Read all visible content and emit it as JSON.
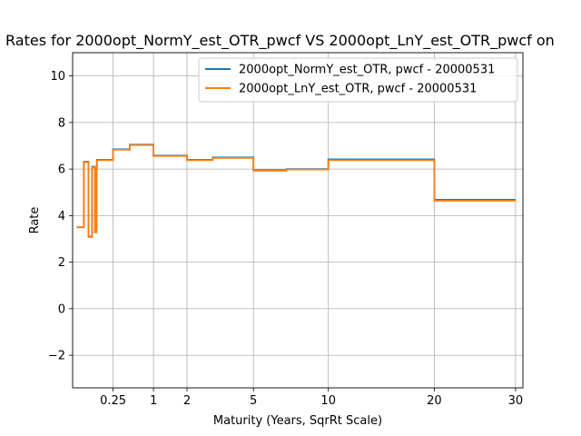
{
  "chart_data": {
    "type": "line",
    "title": "Rates for 2000opt_NormY_est_OTR_pwcf VS 2000opt_LnY_est_OTR_pwcf on",
    "xlabel": "Maturity (Years, SqrRt Scale)",
    "ylabel": "Rate",
    "x_scale": "sqrt",
    "xlim": [
      0,
      31
    ],
    "ylim": [
      -3.4,
      11
    ],
    "x_ticks": [
      0.25,
      1,
      2,
      5,
      10,
      20,
      30
    ],
    "x_tick_labels": [
      "0.25",
      "1",
      "2",
      "5",
      "10",
      "20",
      "30"
    ],
    "y_ticks": [
      -2,
      0,
      2,
      4,
      6,
      8,
      10
    ],
    "y_tick_labels": [
      "−2",
      "0",
      "2",
      "4",
      "6",
      "8",
      "10"
    ],
    "grid": true,
    "legend_position": "top-right",
    "series": [
      {
        "name": "2000opt_NormY_est_OTR, pwcf - 20000531",
        "color": "#1f77b4",
        "x": [
          0.0027,
          0.0192,
          0.0192,
          0.0383,
          0.0383,
          0.0575,
          0.0575,
          0.0767,
          0.0767,
          0.0877,
          0.0877,
          0.0904,
          0.0904,
          0.1,
          0.1,
          0.25,
          0.25,
          0.5,
          0.5,
          1,
          1,
          2,
          2,
          3,
          3,
          5,
          5,
          7,
          7,
          10,
          10,
          20,
          20,
          30
        ],
        "y": [
          3.5,
          3.5,
          6.32,
          6.32,
          3.1,
          3.1,
          6.1,
          6.1,
          3.3,
          3.3,
          6.0,
          6.0,
          6.4,
          6.4,
          6.4,
          6.4,
          6.85,
          6.85,
          7.05,
          7.05,
          6.58,
          6.58,
          6.4,
          6.4,
          6.5,
          6.5,
          5.95,
          5.95,
          6.0,
          6.0,
          6.42,
          6.42,
          4.68,
          4.68
        ]
      },
      {
        "name": "2000opt_LnY_est_OTR, pwcf - 20000531",
        "color": "#ff7f0e",
        "x": [
          0.0027,
          0.0192,
          0.0192,
          0.0383,
          0.0383,
          0.0575,
          0.0575,
          0.0767,
          0.0767,
          0.0877,
          0.0877,
          0.0904,
          0.0904,
          0.1,
          0.1,
          0.25,
          0.25,
          0.5,
          0.5,
          1,
          1,
          2,
          2,
          3,
          3,
          5,
          5,
          7,
          7,
          10,
          10,
          20,
          20,
          30
        ],
        "y": [
          3.5,
          3.5,
          6.3,
          6.3,
          3.08,
          3.08,
          6.08,
          6.08,
          3.28,
          3.28,
          5.98,
          5.98,
          6.38,
          6.38,
          6.38,
          6.38,
          6.83,
          6.83,
          7.03,
          7.03,
          6.56,
          6.56,
          6.38,
          6.38,
          6.48,
          6.48,
          5.93,
          5.93,
          5.98,
          5.98,
          6.38,
          6.38,
          4.64,
          4.64
        ]
      }
    ]
  }
}
